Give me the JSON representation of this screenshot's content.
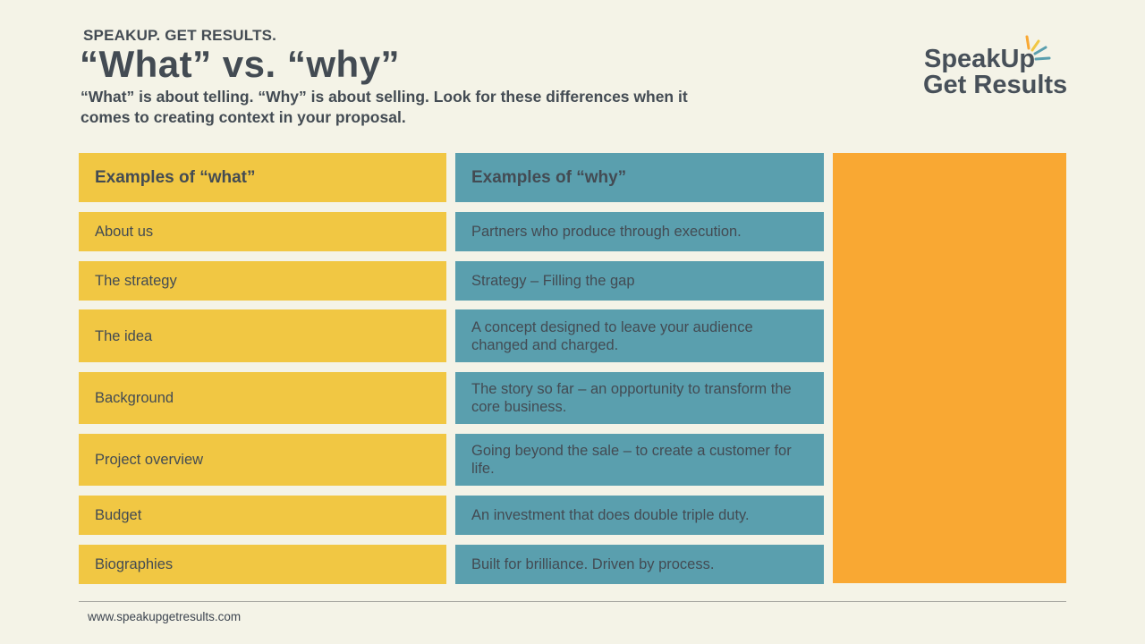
{
  "header": {
    "kicker": "SPEAKUP. GET RESULTS.",
    "title": "“What” vs. “why”",
    "subtitle": "“What” is about telling. “Why” is about selling. Look for these differences when it comes to creating context in your proposal."
  },
  "logo": {
    "line1": "SpeakUp",
    "line2": "Get Results",
    "burst_colors": [
      "#f9a833",
      "#f1c743",
      "#5a9fae",
      "#5a9fae"
    ]
  },
  "table": {
    "what_header": "Examples of “what”",
    "why_header": "Examples of “why”",
    "rows": [
      {
        "what": "About us",
        "why": "Partners who produce through execution."
      },
      {
        "what": "The strategy",
        "why": "Strategy – Filling the gap"
      },
      {
        "what": "The idea",
        "why": "A concept designed to leave your audience changed and charged."
      },
      {
        "what": "Background",
        "why": "The story so far – an opportunity to transform the core business."
      },
      {
        "what": "Project overview",
        "why": "Going beyond the sale – to create a customer for life."
      },
      {
        "what": "Budget",
        "why": "An investment that does double triple duty."
      },
      {
        "what": "Biographies",
        "why": "Built for brilliance. Driven by process."
      }
    ]
  },
  "colors": {
    "background": "#f4f3e7",
    "what_fill": "#f1c743",
    "why_fill": "#5a9fae",
    "panel_fill": "#f9a833",
    "text": "#434b53"
  },
  "footer": {
    "url": "www.speakupgetresults.com"
  }
}
